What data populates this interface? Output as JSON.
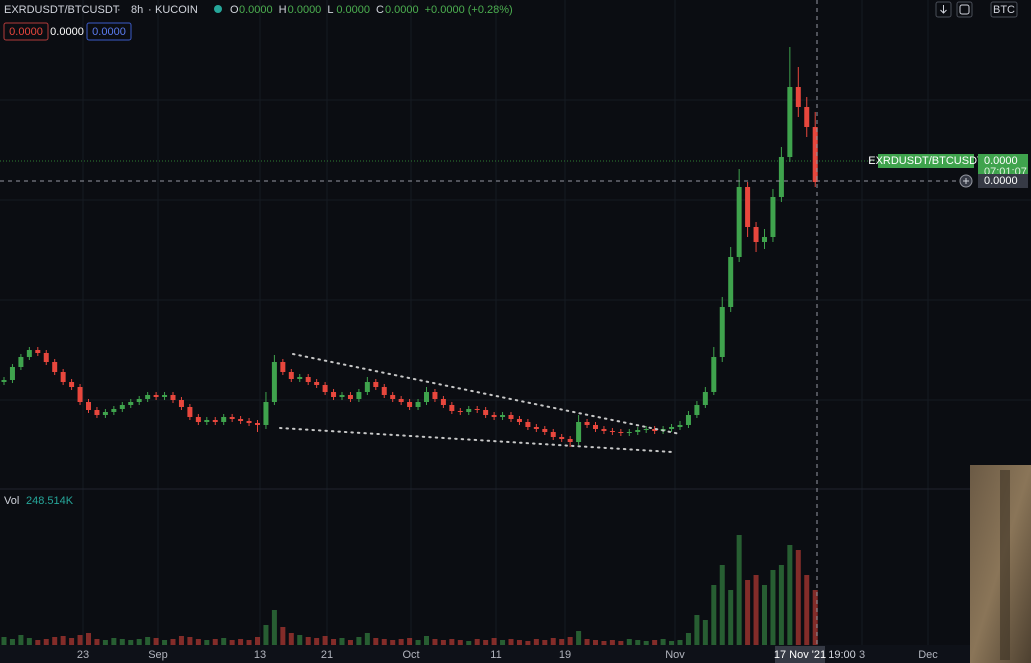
{
  "header": {
    "symbol": "EXRDUSDT/BTCUSDT",
    "interval": "8h",
    "exchange": "KUCOIN",
    "ohlc": [
      {
        "key": "O",
        "value": "0.0000"
      },
      {
        "key": "H",
        "value": "0.0000"
      },
      {
        "key": "L",
        "value": "0.0000"
      },
      {
        "key": "C",
        "value": "0.0000"
      }
    ],
    "change": "+0.0000 (+0.28%)",
    "inputs": [
      "0.0000",
      "0.0000",
      "0.0000"
    ],
    "currency": "BTC"
  },
  "price_labels": {
    "symbol": "EXRDUSDT/BTCUSDT",
    "last": "0.0000",
    "countdown": "07:01:07",
    "cross": "0.0000"
  },
  "volume_label": {
    "name": "Vol",
    "value": "248.514K"
  },
  "time_axis": {
    "labels": [
      "23",
      "Sep",
      "13",
      "21",
      "Oct",
      "11",
      "19",
      "Nov",
      "3",
      "Dec"
    ],
    "cross_date": "17 Nov '21",
    "cross_time": "19:00"
  },
  "chart_data": {
    "type": "candlestick",
    "up_color": "#3fa34d",
    "down_color": "#e8473d",
    "ylim": [
      0,
      460
    ],
    "vlim": [
      0,
      150
    ],
    "candles": [
      [
        105,
        110,
        102,
        107
      ],
      [
        107,
        123,
        104,
        120
      ],
      [
        120,
        133,
        117,
        130
      ],
      [
        130,
        140,
        127,
        137
      ],
      [
        137,
        140,
        131,
        134
      ],
      [
        134,
        137,
        122,
        125
      ],
      [
        125,
        128,
        112,
        115
      ],
      [
        115,
        118,
        102,
        105
      ],
      [
        105,
        108,
        97,
        100
      ],
      [
        100,
        103,
        82,
        85
      ],
      [
        85,
        88,
        74,
        77
      ],
      [
        77,
        80,
        69,
        72
      ],
      [
        72,
        78,
        69,
        75
      ],
      [
        75,
        81,
        72,
        78
      ],
      [
        78,
        85,
        75,
        82
      ],
      [
        82,
        88,
        79,
        85
      ],
      [
        85,
        91,
        82,
        88
      ],
      [
        88,
        95,
        85,
        92
      ],
      [
        92,
        95,
        87,
        90
      ],
      [
        90,
        95,
        87,
        92
      ],
      [
        92,
        95,
        84,
        87
      ],
      [
        87,
        90,
        77,
        80
      ],
      [
        80,
        83,
        67,
        70
      ],
      [
        70,
        73,
        62,
        65
      ],
      [
        65,
        70,
        62,
        67
      ],
      [
        67,
        70,
        62,
        65
      ],
      [
        65,
        73,
        62,
        70
      ],
      [
        70,
        73,
        65,
        68
      ],
      [
        68,
        71,
        63,
        66
      ],
      [
        66,
        69,
        61,
        64
      ],
      [
        64,
        67,
        55,
        62
      ],
      [
        62,
        95,
        58,
        85
      ],
      [
        85,
        132,
        82,
        125
      ],
      [
        125,
        128,
        112,
        115
      ],
      [
        115,
        118,
        105,
        108
      ],
      [
        108,
        113,
        105,
        110
      ],
      [
        110,
        113,
        102,
        105
      ],
      [
        105,
        108,
        99,
        102
      ],
      [
        102,
        105,
        92,
        95
      ],
      [
        95,
        98,
        87,
        90
      ],
      [
        90,
        95,
        87,
        92
      ],
      [
        92,
        95,
        85,
        88
      ],
      [
        88,
        98,
        85,
        95
      ],
      [
        95,
        110,
        92,
        105
      ],
      [
        105,
        108,
        97,
        100
      ],
      [
        100,
        103,
        89,
        92
      ],
      [
        92,
        95,
        85,
        88
      ],
      [
        88,
        91,
        82,
        85
      ],
      [
        85,
        88,
        77,
        80
      ],
      [
        80,
        88,
        77,
        85
      ],
      [
        85,
        100,
        82,
        95
      ],
      [
        95,
        98,
        85,
        88
      ],
      [
        88,
        91,
        79,
        82
      ],
      [
        82,
        85,
        73,
        76
      ],
      [
        76,
        79,
        72,
        75
      ],
      [
        75,
        81,
        72,
        78
      ],
      [
        78,
        81,
        74,
        77
      ],
      [
        77,
        80,
        69,
        72
      ],
      [
        72,
        75,
        67,
        70
      ],
      [
        70,
        75,
        67,
        72
      ],
      [
        72,
        75,
        65,
        68
      ],
      [
        68,
        71,
        62,
        65
      ],
      [
        65,
        68,
        57,
        60
      ],
      [
        60,
        63,
        55,
        58
      ],
      [
        58,
        61,
        52,
        55
      ],
      [
        55,
        58,
        47,
        50
      ],
      [
        50,
        53,
        45,
        48
      ],
      [
        48,
        51,
        40,
        45
      ],
      [
        45,
        72,
        42,
        65
      ],
      [
        65,
        68,
        59,
        62
      ],
      [
        62,
        65,
        55,
        58
      ],
      [
        58,
        61,
        53,
        56
      ],
      [
        56,
        59,
        52,
        55
      ],
      [
        55,
        58,
        51,
        54
      ],
      [
        54,
        58,
        51,
        55
      ],
      [
        55,
        60,
        52,
        57
      ],
      [
        57,
        61,
        54,
        58
      ],
      [
        58,
        61,
        53,
        56
      ],
      [
        56,
        61,
        53,
        58
      ],
      [
        58,
        63,
        55,
        60
      ],
      [
        60,
        66,
        57,
        62
      ],
      [
        62,
        76,
        59,
        72
      ],
      [
        72,
        86,
        69,
        82
      ],
      [
        82,
        100,
        79,
        95
      ],
      [
        95,
        140,
        92,
        130
      ],
      [
        130,
        190,
        125,
        180
      ],
      [
        180,
        240,
        175,
        230
      ],
      [
        230,
        318,
        225,
        300
      ],
      [
        300,
        305,
        250,
        260
      ],
      [
        260,
        265,
        235,
        245
      ],
      [
        245,
        258,
        238,
        250
      ],
      [
        250,
        298,
        245,
        290
      ],
      [
        290,
        340,
        285,
        330
      ],
      [
        330,
        440,
        325,
        400
      ],
      [
        400,
        420,
        370,
        380
      ],
      [
        380,
        390,
        350,
        360
      ],
      [
        360,
        375,
        300,
        305
      ]
    ],
    "volume": [
      8,
      6,
      10,
      7,
      5,
      6,
      8,
      9,
      7,
      10,
      12,
      6,
      5,
      7,
      6,
      5,
      6,
      8,
      7,
      5,
      6,
      9,
      8,
      6,
      5,
      6,
      7,
      5,
      6,
      5,
      8,
      20,
      35,
      18,
      12,
      10,
      8,
      7,
      9,
      6,
      7,
      5,
      8,
      12,
      7,
      6,
      5,
      6,
      7,
      5,
      9,
      6,
      5,
      6,
      5,
      4,
      6,
      5,
      7,
      5,
      6,
      5,
      4,
      6,
      5,
      7,
      6,
      8,
      14,
      6,
      5,
      4,
      5,
      4,
      6,
      5,
      4,
      5,
      6,
      4,
      5,
      12,
      30,
      25,
      60,
      80,
      55,
      110,
      65,
      70,
      60,
      75,
      80,
      100,
      95,
      70,
      55
    ]
  }
}
